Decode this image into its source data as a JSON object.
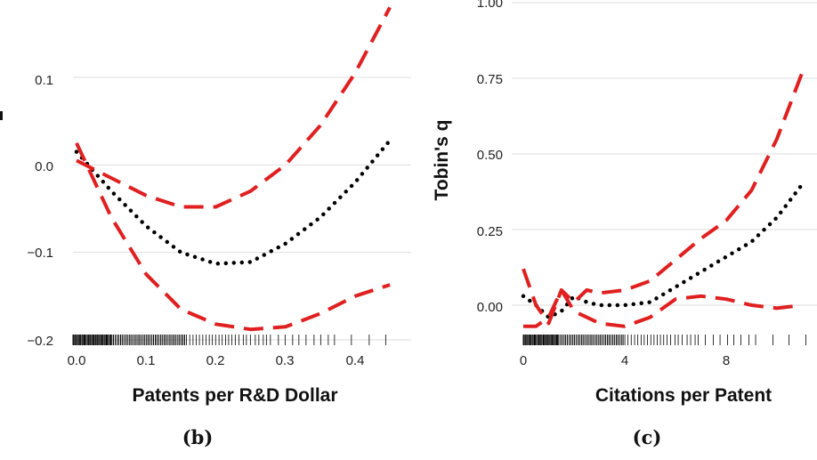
{
  "chart_data": [
    {
      "type": "line",
      "caption": "(b)",
      "title": "",
      "xlabel": "Patents per R&D Dollar",
      "ylabel": "",
      "xlim": [
        -0.02,
        0.47
      ],
      "ylim": [
        -0.2,
        0.2
      ],
      "xticks": [
        "0.0",
        "0.1",
        "0.2",
        "0.3",
        "0.4"
      ],
      "yticks": [
        "0.1",
        "0.0",
        "−0.1",
        "−0.2"
      ],
      "grid": "horizontal",
      "series": [
        {
          "style": "dotted",
          "color": "#000000",
          "x": [
            0.0,
            0.05,
            0.1,
            0.15,
            0.2,
            0.25,
            0.3,
            0.35,
            0.4,
            0.45
          ],
          "y": [
            0.015,
            -0.03,
            -0.07,
            -0.1,
            -0.113,
            -0.111,
            -0.09,
            -0.06,
            -0.02,
            0.028
          ]
        },
        {
          "style": "dashed",
          "color": "#e02020",
          "x": [
            0.0,
            0.05,
            0.1,
            0.15,
            0.2,
            0.25,
            0.3,
            0.35,
            0.4,
            0.45
          ],
          "y": [
            0.005,
            -0.015,
            -0.035,
            -0.048,
            -0.048,
            -0.03,
            0.0,
            0.045,
            0.105,
            0.18
          ]
        },
        {
          "style": "dashed",
          "color": "#e02020",
          "x": [
            0.0,
            0.05,
            0.1,
            0.15,
            0.2,
            0.25,
            0.3,
            0.35,
            0.4,
            0.45
          ],
          "y": [
            0.025,
            -0.06,
            -0.125,
            -0.165,
            -0.182,
            -0.188,
            -0.185,
            -0.17,
            -0.15,
            -0.137
          ]
        }
      ]
    },
    {
      "type": "line",
      "caption": "(c)",
      "title": "",
      "xlabel": "Citations per Patent",
      "ylabel": "Tobin's q",
      "xlim": [
        -0.3,
        11.2
      ],
      "ylim": [
        -0.12,
        1.0
      ],
      "xticks": [
        "0",
        "4",
        "8"
      ],
      "yticks": [
        "1.00",
        "0.75",
        "0.50",
        "0.25",
        "0.00"
      ],
      "grid": "horizontal",
      "series": [
        {
          "style": "dotted",
          "color": "#000000",
          "x": [
            0,
            0.5,
            1,
            1.5,
            2,
            2.5,
            3,
            4,
            5,
            6,
            7,
            8,
            9,
            10,
            11
          ],
          "y": [
            0.03,
            0.0,
            -0.04,
            -0.02,
            0.03,
            0.01,
            0.0,
            0.0,
            0.01,
            0.06,
            0.11,
            0.16,
            0.21,
            0.29,
            0.4
          ]
        },
        {
          "style": "dashed",
          "color": "#e02020",
          "x": [
            0,
            0.5,
            1,
            1.5,
            2,
            2.5,
            3,
            4,
            5,
            6,
            7,
            8,
            9,
            10,
            11
          ],
          "y": [
            0.12,
            0.0,
            -0.06,
            0.05,
            0.01,
            0.05,
            0.04,
            0.05,
            0.08,
            0.15,
            0.22,
            0.28,
            0.38,
            0.55,
            0.77
          ]
        },
        {
          "style": "dashed",
          "color": "#e02020",
          "x": [
            0,
            0.5,
            1,
            1.5,
            2,
            2.5,
            3,
            4,
            5,
            6,
            7,
            8,
            9,
            10,
            11
          ],
          "y": [
            -0.07,
            -0.07,
            -0.04,
            0.05,
            -0.02,
            -0.04,
            -0.06,
            -0.07,
            -0.04,
            0.02,
            0.03,
            0.02,
            0.0,
            -0.01,
            0.0
          ]
        }
      ]
    }
  ]
}
